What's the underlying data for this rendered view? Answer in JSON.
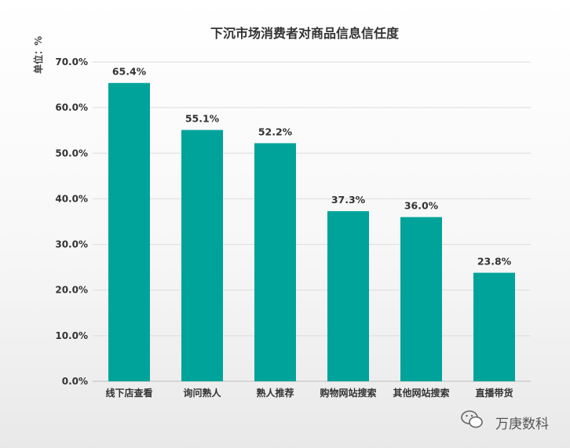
{
  "chart_data": {
    "type": "bar",
    "title": "下沉市场消费者对商品信息信任度",
    "ylabel": "单位：%",
    "ylim": [
      0,
      70
    ],
    "yticks": [
      "0.0%",
      "10.0%",
      "20.0%",
      "30.0%",
      "40.0%",
      "50.0%",
      "60.0%",
      "70.0%"
    ],
    "categories": [
      "线下店查看",
      "询问熟人",
      "熟人推荐",
      "购物网站搜索",
      "其他网站搜索",
      "直播带货"
    ],
    "values": [
      65.4,
      55.1,
      52.2,
      37.3,
      36.0,
      23.8
    ],
    "value_labels": [
      "65.4%",
      "55.1%",
      "52.2%",
      "37.3%",
      "36.0%",
      "23.8%"
    ],
    "bar_color": "#00a39a",
    "grid": true,
    "legend": "none"
  },
  "watermark": {
    "icon": "wechat-icon",
    "text": "万庚数科"
  }
}
